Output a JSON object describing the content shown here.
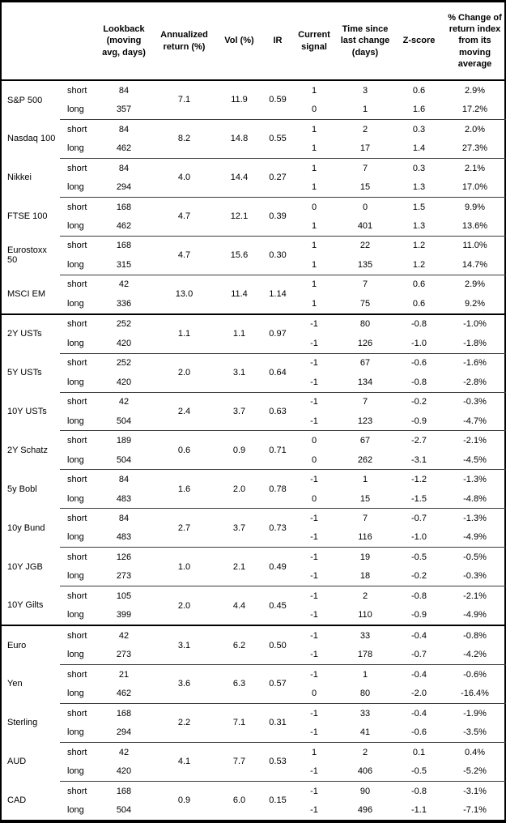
{
  "table": {
    "columns": [
      {
        "name": "col-header-asset",
        "label": ""
      },
      {
        "name": "col-header-leg",
        "label": ""
      },
      {
        "name": "col-header-lookback",
        "label": "Lookback (moving avg, days)"
      },
      {
        "name": "col-header-annualized-return",
        "label": "Annualized return (%)"
      },
      {
        "name": "col-header-vol",
        "label": "Vol (%)"
      },
      {
        "name": "col-header-ir",
        "label": "IR"
      },
      {
        "name": "col-header-current-signal",
        "label": "Current signal"
      },
      {
        "name": "col-header-time-since",
        "label": "Time since last change (days)"
      },
      {
        "name": "col-header-zscore",
        "label": "Z-score"
      },
      {
        "name": "col-header-pct-change",
        "label": "% Change of return index from its moving average"
      }
    ],
    "sections": [
      {
        "assets": [
          {
            "name": "S&P 500",
            "annualized_return": "7.1",
            "vol": "11.9",
            "ir": "0.59",
            "rows": [
              {
                "leg": "short",
                "lookback": "84",
                "signal": "1",
                "time_since": "3",
                "zscore": "0.6",
                "pct_change": "2.9%"
              },
              {
                "leg": "long",
                "lookback": "357",
                "signal": "0",
                "time_since": "1",
                "zscore": "1.6",
                "pct_change": "17.2%"
              }
            ]
          },
          {
            "name": "Nasdaq 100",
            "annualized_return": "8.2",
            "vol": "14.8",
            "ir": "0.55",
            "rows": [
              {
                "leg": "short",
                "lookback": "84",
                "signal": "1",
                "time_since": "2",
                "zscore": "0.3",
                "pct_change": "2.0%"
              },
              {
                "leg": "long",
                "lookback": "462",
                "signal": "1",
                "time_since": "17",
                "zscore": "1.4",
                "pct_change": "27.3%"
              }
            ]
          },
          {
            "name": "Nikkei",
            "annualized_return": "4.0",
            "vol": "14.4",
            "ir": "0.27",
            "rows": [
              {
                "leg": "short",
                "lookback": "84",
                "signal": "1",
                "time_since": "7",
                "zscore": "0.3",
                "pct_change": "2.1%"
              },
              {
                "leg": "long",
                "lookback": "294",
                "signal": "1",
                "time_since": "15",
                "zscore": "1.3",
                "pct_change": "17.0%"
              }
            ]
          },
          {
            "name": "FTSE 100",
            "annualized_return": "4.7",
            "vol": "12.1",
            "ir": "0.39",
            "rows": [
              {
                "leg": "short",
                "lookback": "168",
                "signal": "0",
                "time_since": "0",
                "zscore": "1.5",
                "pct_change": "9.9%"
              },
              {
                "leg": "long",
                "lookback": "462",
                "signal": "1",
                "time_since": "401",
                "zscore": "1.3",
                "pct_change": "13.6%"
              }
            ]
          },
          {
            "name": "Eurostoxx 50",
            "annualized_return": "4.7",
            "vol": "15.6",
            "ir": "0.30",
            "rows": [
              {
                "leg": "short",
                "lookback": "168",
                "signal": "1",
                "time_since": "22",
                "zscore": "1.2",
                "pct_change": "11.0%"
              },
              {
                "leg": "long",
                "lookback": "315",
                "signal": "1",
                "time_since": "135",
                "zscore": "1.2",
                "pct_change": "14.7%"
              }
            ]
          },
          {
            "name": "MSCI EM",
            "annualized_return": "13.0",
            "vol": "11.4",
            "ir": "1.14",
            "rows": [
              {
                "leg": "short",
                "lookback": "42",
                "signal": "1",
                "time_since": "7",
                "zscore": "0.6",
                "pct_change": "2.9%"
              },
              {
                "leg": "long",
                "lookback": "336",
                "signal": "1",
                "time_since": "75",
                "zscore": "0.6",
                "pct_change": "9.2%"
              }
            ]
          }
        ]
      },
      {
        "assets": [
          {
            "name": "2Y USTs",
            "annualized_return": "1.1",
            "vol": "1.1",
            "ir": "0.97",
            "rows": [
              {
                "leg": "short",
                "lookback": "252",
                "signal": "-1",
                "time_since": "80",
                "zscore": "-0.8",
                "pct_change": "-1.0%"
              },
              {
                "leg": "long",
                "lookback": "420",
                "signal": "-1",
                "time_since": "126",
                "zscore": "-1.0",
                "pct_change": "-1.8%"
              }
            ]
          },
          {
            "name": "5Y USTs",
            "annualized_return": "2.0",
            "vol": "3.1",
            "ir": "0.64",
            "rows": [
              {
                "leg": "short",
                "lookback": "252",
                "signal": "-1",
                "time_since": "67",
                "zscore": "-0.6",
                "pct_change": "-1.6%"
              },
              {
                "leg": "long",
                "lookback": "420",
                "signal": "-1",
                "time_since": "134",
                "zscore": "-0.8",
                "pct_change": "-2.8%"
              }
            ]
          },
          {
            "name": "10Y USTs",
            "annualized_return": "2.4",
            "vol": "3.7",
            "ir": "0.63",
            "rows": [
              {
                "leg": "short",
                "lookback": "42",
                "signal": "-1",
                "time_since": "7",
                "zscore": "-0.2",
                "pct_change": "-0.3%"
              },
              {
                "leg": "long",
                "lookback": "504",
                "signal": "-1",
                "time_since": "123",
                "zscore": "-0.9",
                "pct_change": "-4.7%"
              }
            ]
          },
          {
            "name": "2Y Schatz",
            "annualized_return": "0.6",
            "vol": "0.9",
            "ir": "0.71",
            "rows": [
              {
                "leg": "short",
                "lookback": "189",
                "signal": "0",
                "time_since": "67",
                "zscore": "-2.7",
                "pct_change": "-2.1%"
              },
              {
                "leg": "long",
                "lookback": "504",
                "signal": "0",
                "time_since": "262",
                "zscore": "-3.1",
                "pct_change": "-4.5%"
              }
            ]
          },
          {
            "name": "5y Bobl",
            "annualized_return": "1.6",
            "vol": "2.0",
            "ir": "0.78",
            "rows": [
              {
                "leg": "short",
                "lookback": "84",
                "signal": "-1",
                "time_since": "1",
                "zscore": "-1.2",
                "pct_change": "-1.3%"
              },
              {
                "leg": "long",
                "lookback": "483",
                "signal": "0",
                "time_since": "15",
                "zscore": "-1.5",
                "pct_change": "-4.8%"
              }
            ]
          },
          {
            "name": "10y Bund",
            "annualized_return": "2.7",
            "vol": "3.7",
            "ir": "0.73",
            "rows": [
              {
                "leg": "short",
                "lookback": "84",
                "signal": "-1",
                "time_since": "7",
                "zscore": "-0.7",
                "pct_change": "-1.3%"
              },
              {
                "leg": "long",
                "lookback": "483",
                "signal": "-1",
                "time_since": "116",
                "zscore": "-1.0",
                "pct_change": "-4.9%"
              }
            ]
          },
          {
            "name": "10Y JGB",
            "annualized_return": "1.0",
            "vol": "2.1",
            "ir": "0.49",
            "rows": [
              {
                "leg": "short",
                "lookback": "126",
                "signal": "-1",
                "time_since": "19",
                "zscore": "-0.5",
                "pct_change": "-0.5%"
              },
              {
                "leg": "long",
                "lookback": "273",
                "signal": "-1",
                "time_since": "18",
                "zscore": "-0.2",
                "pct_change": "-0.3%"
              }
            ]
          },
          {
            "name": "10Y Gilts",
            "annualized_return": "2.0",
            "vol": "4.4",
            "ir": "0.45",
            "rows": [
              {
                "leg": "short",
                "lookback": "105",
                "signal": "-1",
                "time_since": "2",
                "zscore": "-0.8",
                "pct_change": "-2.1%"
              },
              {
                "leg": "long",
                "lookback": "399",
                "signal": "-1",
                "time_since": "110",
                "zscore": "-0.9",
                "pct_change": "-4.9%"
              }
            ]
          }
        ]
      },
      {
        "assets": [
          {
            "name": "Euro",
            "annualized_return": "3.1",
            "vol": "6.2",
            "ir": "0.50",
            "rows": [
              {
                "leg": "short",
                "lookback": "42",
                "signal": "-1",
                "time_since": "33",
                "zscore": "-0.4",
                "pct_change": "-0.8%"
              },
              {
                "leg": "long",
                "lookback": "273",
                "signal": "-1",
                "time_since": "178",
                "zscore": "-0.7",
                "pct_change": "-4.2%"
              }
            ]
          },
          {
            "name": "Yen",
            "annualized_return": "3.6",
            "vol": "6.3",
            "ir": "0.57",
            "rows": [
              {
                "leg": "short",
                "lookback": "21",
                "signal": "-1",
                "time_since": "1",
                "zscore": "-0.4",
                "pct_change": "-0.6%"
              },
              {
                "leg": "long",
                "lookback": "462",
                "signal": "0",
                "time_since": "80",
                "zscore": "-2.0",
                "pct_change": "-16.4%"
              }
            ]
          },
          {
            "name": "Sterling",
            "annualized_return": "2.2",
            "vol": "7.1",
            "ir": "0.31",
            "rows": [
              {
                "leg": "short",
                "lookback": "168",
                "signal": "-1",
                "time_since": "33",
                "zscore": "-0.4",
                "pct_change": "-1.9%"
              },
              {
                "leg": "long",
                "lookback": "294",
                "signal": "-1",
                "time_since": "41",
                "zscore": "-0.6",
                "pct_change": "-3.5%"
              }
            ]
          },
          {
            "name": "AUD",
            "annualized_return": "4.1",
            "vol": "7.7",
            "ir": "0.53",
            "rows": [
              {
                "leg": "short",
                "lookback": "42",
                "signal": "1",
                "time_since": "2",
                "zscore": "0.1",
                "pct_change": "0.4%"
              },
              {
                "leg": "long",
                "lookback": "420",
                "signal": "-1",
                "time_since": "406",
                "zscore": "-0.5",
                "pct_change": "-5.2%"
              }
            ]
          },
          {
            "name": "CAD",
            "annualized_return": "0.9",
            "vol": "6.0",
            "ir": "0.15",
            "rows": [
              {
                "leg": "short",
                "lookback": "168",
                "signal": "-1",
                "time_since": "90",
                "zscore": "-0.8",
                "pct_change": "-3.1%"
              },
              {
                "leg": "long",
                "lookback": "504",
                "signal": "-1",
                "time_since": "496",
                "zscore": "-1.1",
                "pct_change": "-7.1%"
              }
            ]
          }
        ]
      }
    ]
  }
}
